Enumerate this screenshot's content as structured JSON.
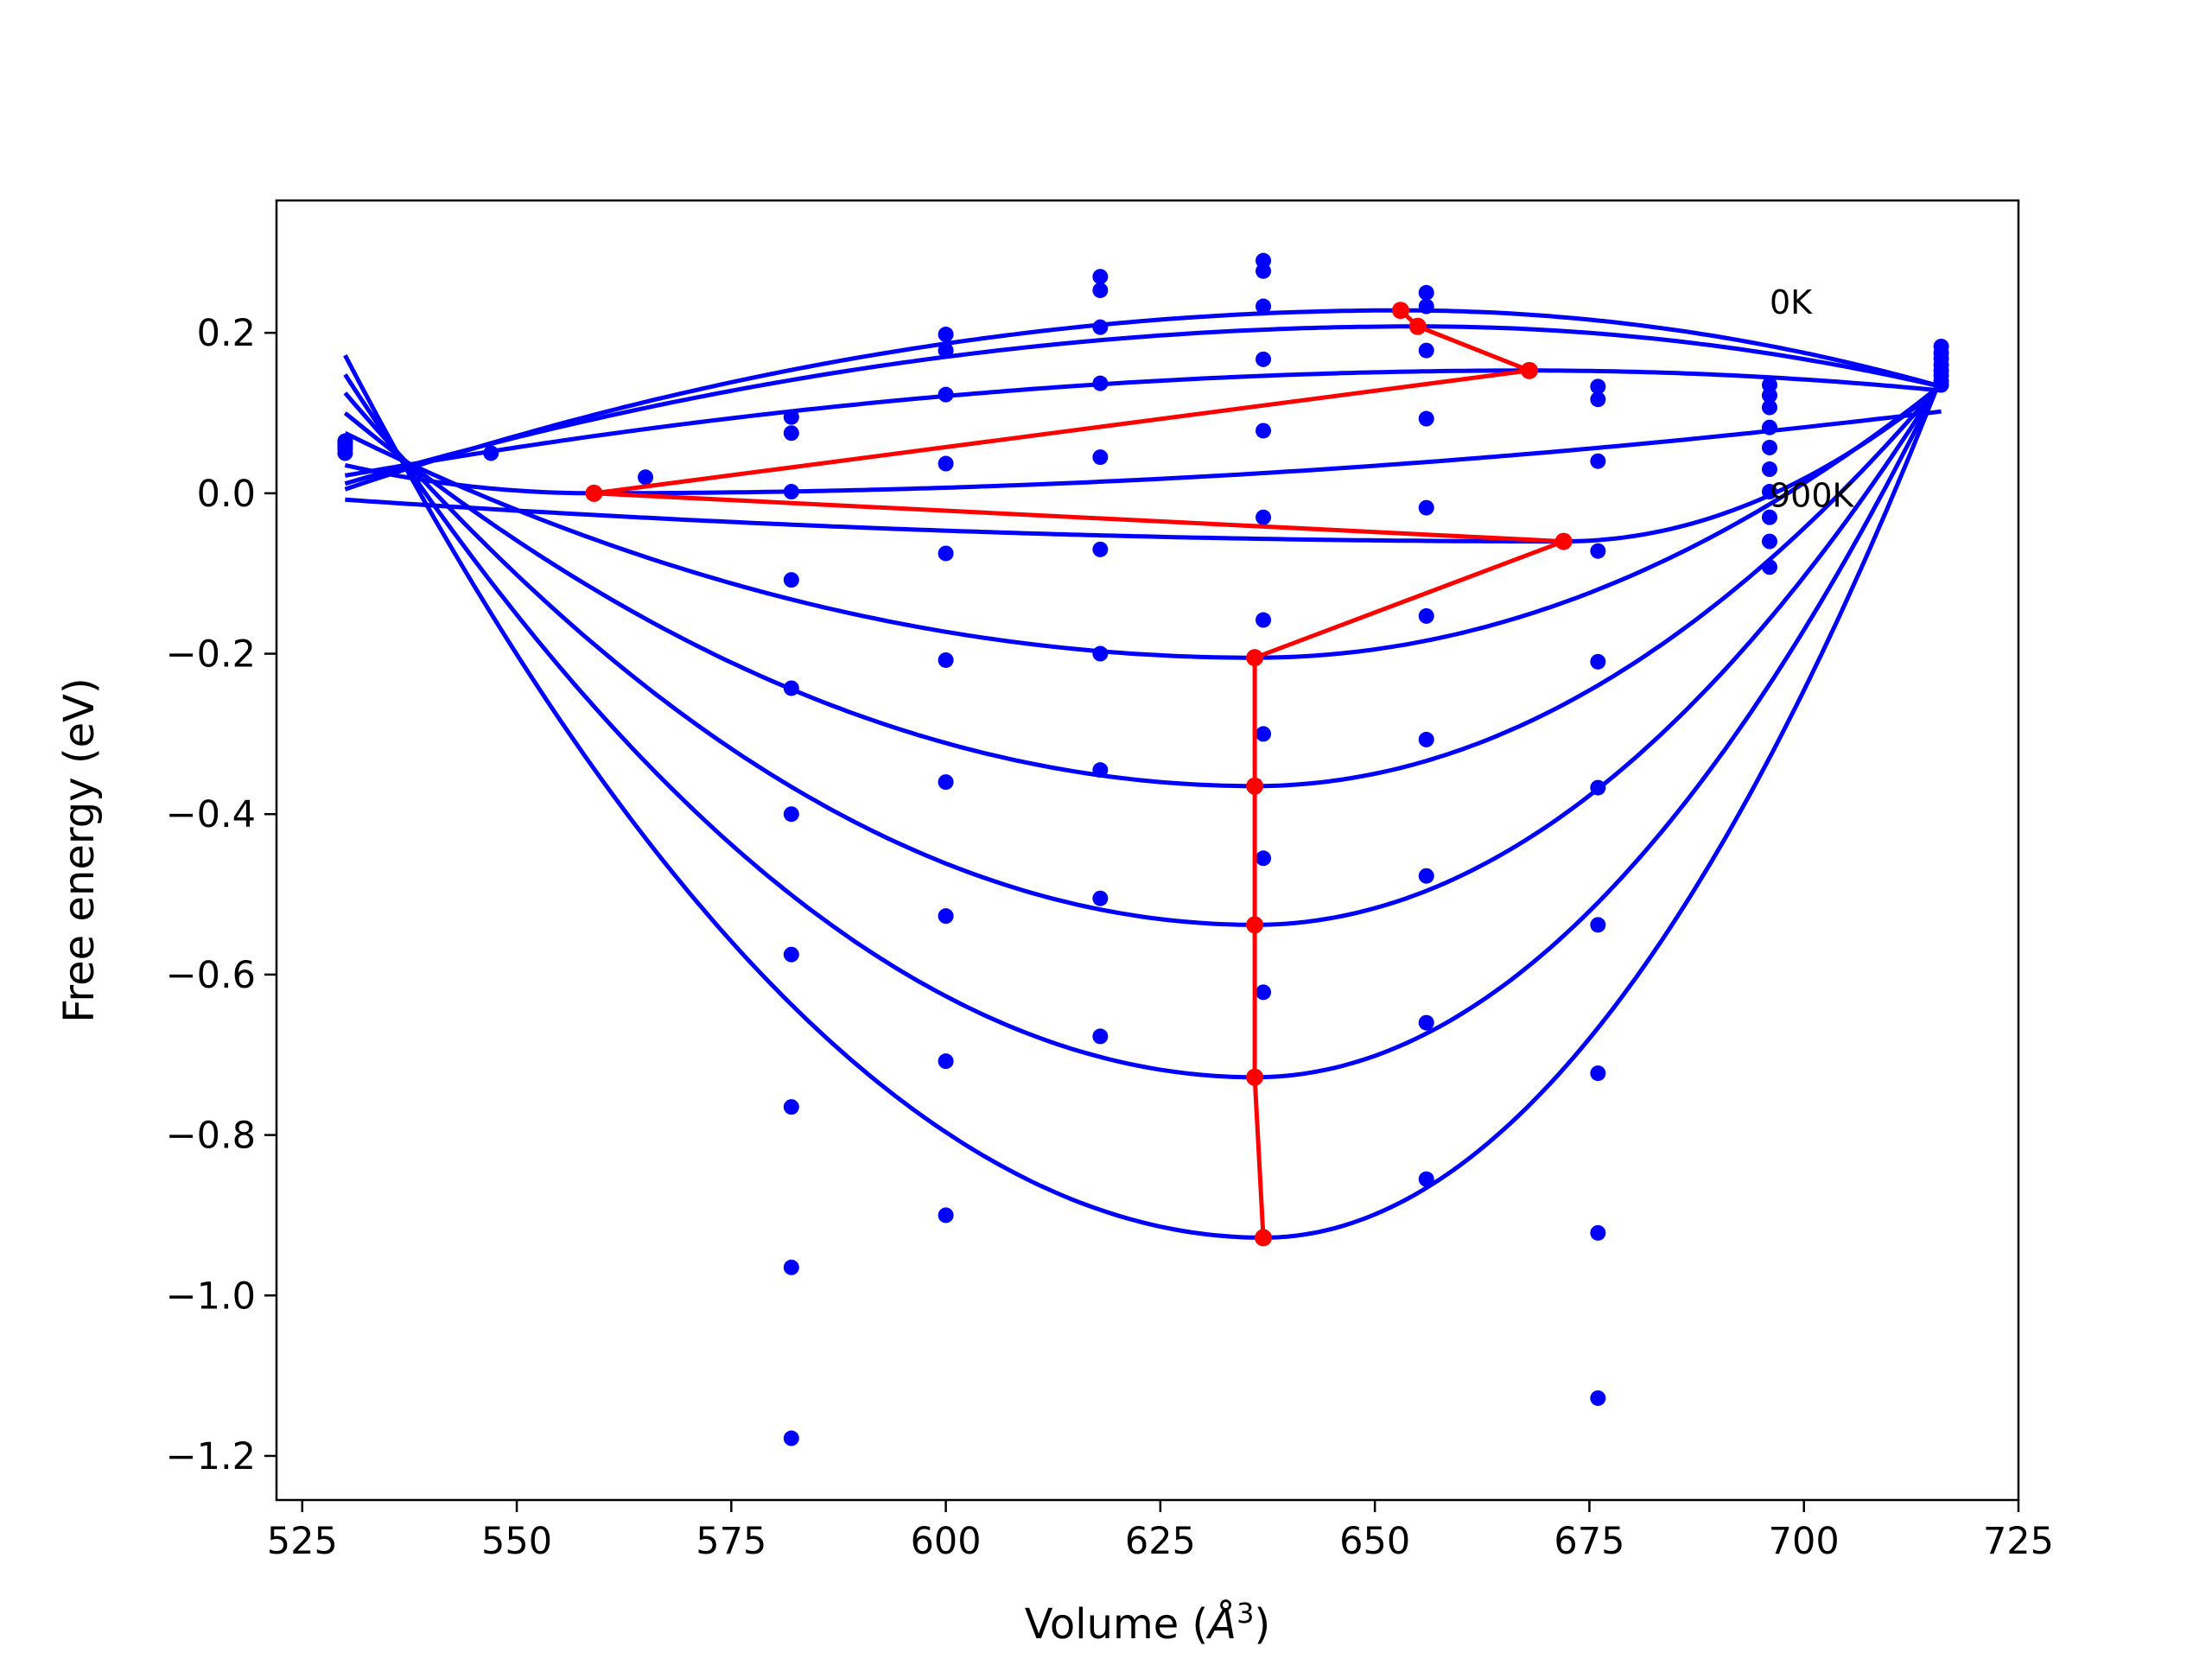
{
  "chart_data": {
    "type": "scatter",
    "xlabel": "Volume (",
    "xlabel_symbol": "Å",
    "xlabel_exp": "3",
    "xlabel_close": ")",
    "ylabel": "Free energy (eV)",
    "xlim": [
      522,
      725
    ],
    "ylim": [
      -1.255,
      0.365
    ],
    "xticks": [
      525,
      550,
      575,
      600,
      625,
      650,
      675,
      700,
      725
    ],
    "yticks": [
      0.2,
      0.0,
      -0.2,
      -0.4,
      -0.6,
      -0.8,
      -1.0,
      -1.2
    ],
    "ytick_labels": [
      "0.2",
      "0.0",
      "−0.2",
      "−0.4",
      "−0.6",
      "−0.8",
      "−1.0",
      "−1.2"
    ],
    "annotations": [
      {
        "text": "0K",
        "x": 696,
        "y": 0.238
      },
      {
        "text": "900K",
        "x": 696,
        "y": -0.003
      }
    ],
    "colors": {
      "fit": "#0000ff",
      "points": "#0000ff",
      "minima": "#ff0000",
      "axes": "#000000"
    },
    "fit_x_range": [
      530,
      716
    ],
    "fit_curves": [
      {
        "minimum": [
          653,
          0.228
        ],
        "left_end": 0.005,
        "right_end": 0.133
      },
      {
        "minimum": [
          655,
          0.208
        ],
        "left_end": 0.012,
        "right_end": 0.133
      },
      {
        "minimum": [
          668,
          0.153
        ],
        "left_end": 0.022,
        "right_end": 0.128
      },
      {
        "minimum": [
          559,
          0.0
        ],
        "left_end": 0.035,
        "right_end": 0.102
      },
      {
        "minimum": [
          672,
          -0.06
        ],
        "left_end": -0.008,
        "right_end": 0.133
      },
      {
        "minimum": [
          636,
          -0.205
        ],
        "left_end": 0.075,
        "right_end": 0.135
      },
      {
        "minimum": [
          636,
          -0.365
        ],
        "left_end": 0.1,
        "right_end": 0.137
      },
      {
        "minimum": [
          636,
          -0.538
        ],
        "left_end": 0.125,
        "right_end": 0.14
      },
      {
        "minimum": [
          636,
          -0.728
        ],
        "left_end": 0.148,
        "right_end": 0.143
      },
      {
        "minimum": [
          637,
          -0.928
        ],
        "left_end": 0.172,
        "right_end": 0.145
      }
    ],
    "equilibrium_path": {
      "x": [
        653,
        655,
        668,
        559,
        672,
        636,
        636,
        636,
        636,
        637
      ],
      "y": [
        0.228,
        0.208,
        0.153,
        0.0,
        -0.06,
        -0.205,
        -0.365,
        -0.538,
        -0.728,
        -0.928
      ]
    },
    "points": [
      {
        "x": 530,
        "values": [
          0.05,
          0.055,
          0.058,
          0.062,
          0.065
        ]
      },
      {
        "x": 547,
        "values": [
          0.05
        ]
      },
      {
        "x": 565,
        "values": [
          0.02
        ]
      },
      {
        "x": 582,
        "values": [
          0.095,
          0.075,
          0.002,
          -0.108,
          -0.243,
          -0.4,
          -0.575,
          -0.765,
          -0.965,
          -1.178
        ]
      },
      {
        "x": 600,
        "values": [
          0.198,
          0.178,
          0.123,
          0.037,
          -0.075,
          -0.208,
          -0.36,
          -0.527,
          -0.708,
          -0.9
        ]
      },
      {
        "x": 618,
        "values": [
          0.27,
          0.253,
          0.207,
          0.137,
          0.045,
          -0.07,
          -0.2,
          -0.345,
          -0.505,
          -0.677
        ]
      },
      {
        "x": 637,
        "values": [
          0.29,
          0.277,
          0.233,
          0.167,
          0.078,
          -0.03,
          -0.158,
          -0.3,
          -0.455,
          -0.622
        ]
      },
      {
        "x": 656,
        "values": [
          0.25,
          0.233,
          0.178,
          0.093,
          -0.018,
          -0.153,
          -0.307,
          -0.477,
          -0.66,
          -0.855
        ]
      },
      {
        "x": 676,
        "values": [
          0.133,
          0.117,
          0.04,
          -0.072,
          -0.21,
          -0.367,
          -0.538,
          -0.723,
          -0.922,
          -1.128
        ]
      },
      {
        "x": 696,
        "values": [
          0.135,
          0.122,
          0.107,
          0.082,
          0.057,
          0.03,
          0.002,
          -0.03,
          -0.06,
          -0.092
        ]
      },
      {
        "x": 716,
        "values": [
          0.183,
          0.175,
          0.168,
          0.16,
          0.153,
          0.147,
          0.14,
          0.135
        ]
      }
    ]
  }
}
